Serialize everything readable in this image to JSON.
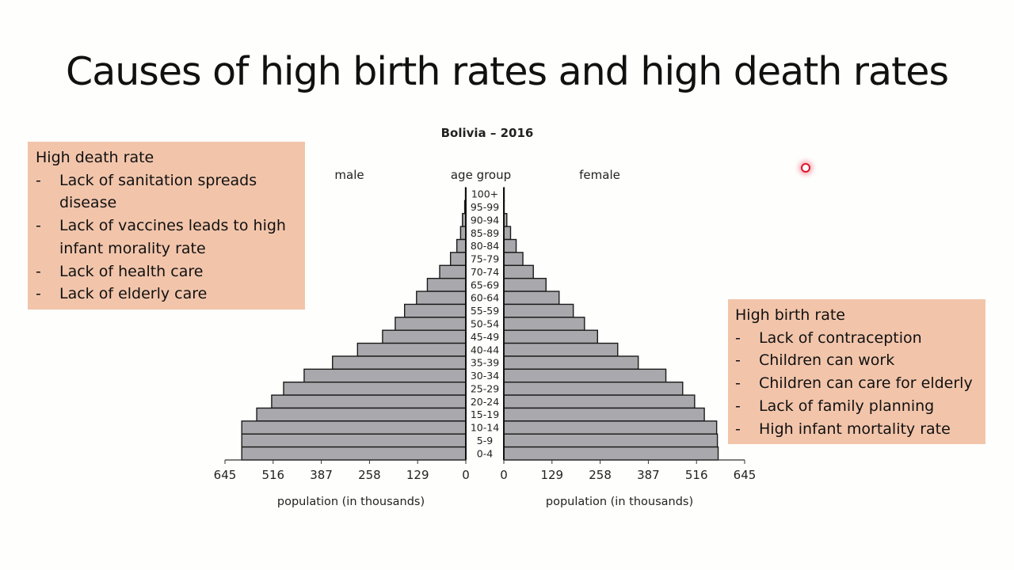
{
  "slide": {
    "title": "Causes of high birth rates and high death rates"
  },
  "death_box": {
    "heading": "High death rate",
    "items": [
      "Lack of sanitation spreads disease",
      "Lack of vaccines leads to high infant morality rate",
      "Lack of health care",
      "Lack of elderly care"
    ]
  },
  "birth_box": {
    "heading": "High birth rate",
    "items": [
      "Lack of contraception",
      "Children can work",
      "Children can care for elderly",
      "Lack of family planning",
      "High infant mortality rate"
    ]
  },
  "chart_data": {
    "type": "bar",
    "orientation": "horizontal-pyramid",
    "title": "Bolivia – 2016",
    "left_label": "male",
    "center_label": "age group",
    "right_label": "female",
    "xlabel_left": "population (in thousands)",
    "xlabel_right": "population (in thousands)",
    "xlim": [
      0,
      645
    ],
    "xticks": [
      0,
      129,
      258,
      387,
      516,
      645
    ],
    "categories": [
      "100+",
      "95-99",
      "90-94",
      "85-89",
      "80-84",
      "75-79",
      "70-74",
      "65-69",
      "60-64",
      "55-59",
      "50-54",
      "45-49",
      "40-44",
      "35-39",
      "30-34",
      "25-29",
      "20-24",
      "15-19",
      "10-14",
      "5-9",
      "0-4"
    ],
    "series": [
      {
        "name": "male",
        "values": [
          1,
          3,
          9,
          14,
          24,
          41,
          70,
          103,
          132,
          164,
          189,
          223,
          290,
          357,
          433,
          488,
          520,
          560,
          600,
          600,
          600
        ]
      },
      {
        "name": "female",
        "values": [
          1,
          1,
          8,
          18,
          33,
          51,
          79,
          113,
          148,
          186,
          216,
          251,
          305,
          360,
          434,
          479,
          511,
          537,
          570,
          572,
          574
        ]
      }
    ],
    "bar_color": "#a9a9ad",
    "grid": false,
    "legend": "none"
  }
}
